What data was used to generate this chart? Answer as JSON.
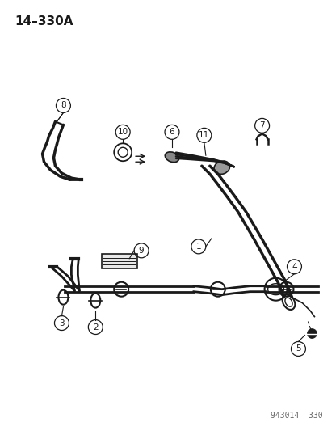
{
  "title": "14–330A",
  "footer": "943014  330",
  "bg_color": "#ffffff",
  "line_color": "#1a1a1a",
  "title_fontsize": 11,
  "footer_fontsize": 7
}
